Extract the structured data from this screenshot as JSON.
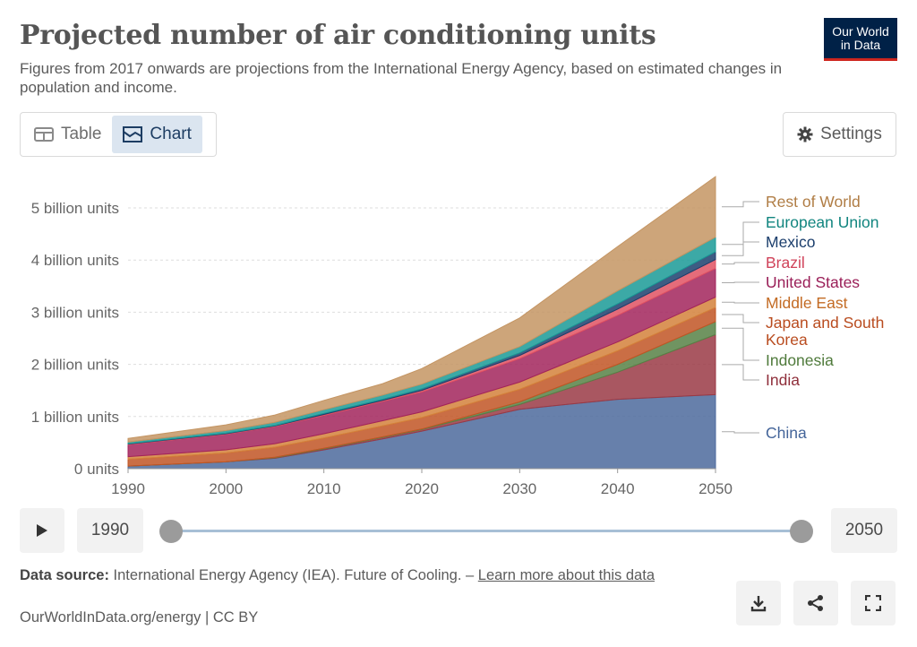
{
  "header": {
    "title": "Projected number of air conditioning units",
    "subtitle": "Figures from 2017 onwards are projections from the International Energy Agency, based on estimated changes in population and income.",
    "logo_line1": "Our World",
    "logo_line2": "in Data"
  },
  "tabs": {
    "table_label": "Table",
    "chart_label": "Chart",
    "active": "Chart"
  },
  "settings_label": "Settings",
  "timeline": {
    "start_year": "1990",
    "end_year": "2050"
  },
  "footer": {
    "source_label": "Data source:",
    "source_text": "International Energy Agency (IEA). Future of Cooling. –",
    "learn_more": "Learn more about this data",
    "attribution": "OurWorldInData.org/energy | CC BY"
  },
  "chart_data": {
    "type": "area",
    "stacked": true,
    "x": [
      1990,
      2000,
      2005,
      2010,
      2016,
      2020,
      2030,
      2040,
      2050
    ],
    "y_ticks": [
      0,
      1,
      2,
      3,
      4,
      5
    ],
    "y_tick_labels": [
      "0 units",
      "1 billion units",
      "2 billion units",
      "3 billion units",
      "4 billion units",
      "5 billion units"
    ],
    "x_tick_labels": [
      "1990",
      "2000",
      "2010",
      "2020",
      "2030",
      "2040",
      "2050"
    ],
    "xlim": [
      1990,
      2050
    ],
    "ylim": [
      0,
      5.6
    ],
    "unit": "billion units",
    "grid": "horizontal dashed",
    "legend_position": "right",
    "series": [
      {
        "name": "China",
        "color": "#4c6a9c",
        "values": [
          0.05,
          0.13,
          0.2,
          0.36,
          0.57,
          0.72,
          1.14,
          1.33,
          1.42
        ]
      },
      {
        "name": "India",
        "color": "#9a3a45",
        "values": [
          0.0,
          0.0,
          0.01,
          0.02,
          0.03,
          0.03,
          0.09,
          0.52,
          1.15
        ]
      },
      {
        "name": "Indonesia",
        "color": "#578145",
        "values": [
          0.0,
          0.0,
          0.01,
          0.01,
          0.01,
          0.01,
          0.05,
          0.15,
          0.25
        ]
      },
      {
        "name": "Japan and South Korea",
        "color": "#c15524",
        "values": [
          0.13,
          0.17,
          0.19,
          0.2,
          0.21,
          0.22,
          0.24,
          0.26,
          0.27
        ]
      },
      {
        "name": "Middle East",
        "color": "#d4813b",
        "values": [
          0.05,
          0.06,
          0.07,
          0.08,
          0.1,
          0.11,
          0.14,
          0.17,
          0.2
        ]
      },
      {
        "name": "United States",
        "color": "#a2245c",
        "values": [
          0.23,
          0.3,
          0.33,
          0.35,
          0.37,
          0.38,
          0.45,
          0.51,
          0.55
        ]
      },
      {
        "name": "Brazil",
        "color": "#e05263",
        "values": [
          0.01,
          0.01,
          0.01,
          0.02,
          0.02,
          0.03,
          0.06,
          0.12,
          0.17
        ]
      },
      {
        "name": "Mexico",
        "color": "#1c3f6d",
        "values": [
          0.01,
          0.01,
          0.01,
          0.02,
          0.02,
          0.03,
          0.05,
          0.1,
          0.15
        ]
      },
      {
        "name": "European Union",
        "color": "#1a9a96",
        "values": [
          0.03,
          0.05,
          0.06,
          0.07,
          0.08,
          0.09,
          0.12,
          0.25,
          0.28
        ]
      },
      {
        "name": "Rest of World",
        "color": "#c49563",
        "values": [
          0.07,
          0.11,
          0.14,
          0.18,
          0.22,
          0.3,
          0.55,
          0.85,
          1.16
        ]
      }
    ]
  }
}
